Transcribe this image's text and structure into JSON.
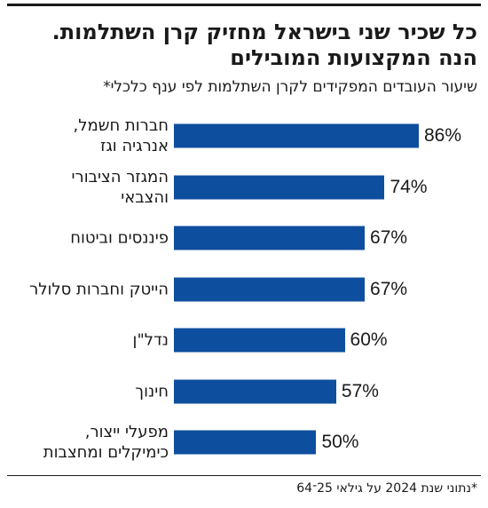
{
  "chart_data": {
    "type": "bar",
    "orientation": "horizontal",
    "title": "כל שכיר שני בישראל מחזיק קרן השתלמות. הנה המקצועות המובילים",
    "subtitle": "שיעור העובדים המפקידים לקרן השתלמות לפי ענף כלכלי*",
    "categories": [
      "חברות חשמל,\nאנרגיה וגז",
      "המגזר הציבורי\nוהצבאי",
      "פיננסים וביטוח",
      "הייטק וחברות סלולר",
      "נדל\"ן",
      "חינוך",
      "מפעלי ייצור,\nכימיקלים ומחצבות"
    ],
    "values": [
      86,
      74,
      67,
      67,
      60,
      57,
      50
    ],
    "value_labels": [
      "86%",
      "74%",
      "67%",
      "67%",
      "60%",
      "57%",
      "50%"
    ],
    "color": "#0d4e9e",
    "footnote": "*נתוני שנת 2024 על גילאי 25־64"
  }
}
